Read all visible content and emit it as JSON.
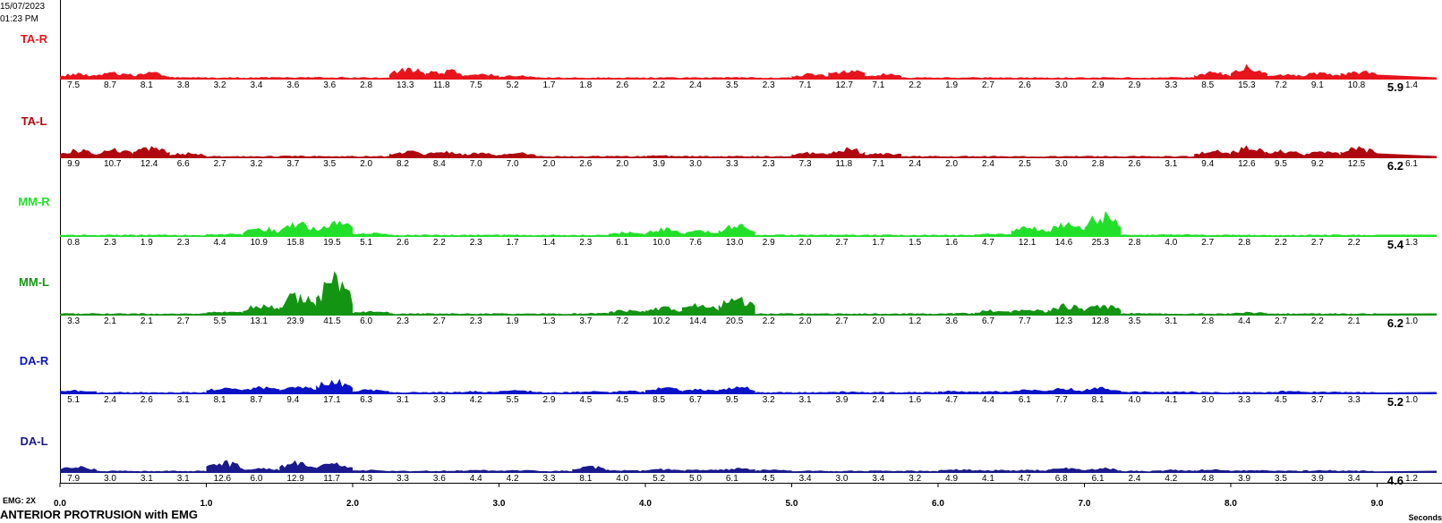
{
  "header": {
    "date": "15/07/2023",
    "time": "01:23 PM"
  },
  "footer": {
    "gain": "EMG: 2X",
    "title": "ANTERIOR PROTRUSION with EMG",
    "x_unit": "Seconds"
  },
  "chart_data": {
    "type": "area",
    "title": "ANTERIOR PROTRUSION with EMG",
    "xlabel": "Seconds",
    "xlim": [
      0,
      9.4
    ],
    "x_ticks": [
      "0.0",
      "1.0",
      "2.0",
      "3.0",
      "4.0",
      "5.0",
      "6.0",
      "7.0",
      "8.0",
      "9.0"
    ],
    "segment_width_s": 0.25,
    "series": [
      {
        "name": "TA-R",
        "color": "#e8141c",
        "rms": "5.9",
        "tail": "1.4",
        "segments": [
          "7.5",
          "8.7",
          "8.1",
          "3.8",
          "3.2",
          "3.4",
          "3.6",
          "3.6",
          "2.8",
          "13.3",
          "11.8",
          "7.5",
          "5.2",
          "1.7",
          "1.8",
          "2.6",
          "2.2",
          "2.4",
          "3.5",
          "2.3",
          "7.1",
          "12.7",
          "7.1",
          "2.2",
          "1.9",
          "2.7",
          "2.6",
          "3.0",
          "2.9",
          "2.9",
          "3.3",
          "8.5",
          "15.3",
          "7.2",
          "9.1",
          "10.8"
        ]
      },
      {
        "name": "TA-L",
        "color": "#b0080e",
        "rms": "6.2",
        "tail": "6.1",
        "segments": [
          "9.9",
          "10.7",
          "12.4",
          "6.6",
          "2.7",
          "3.2",
          "3.7",
          "3.5",
          "2.0",
          "8.2",
          "8.4",
          "7.0",
          "7.0",
          "2.0",
          "2.6",
          "2.0",
          "3.9",
          "3.0",
          "3.3",
          "2.3",
          "7.3",
          "11.8",
          "7.1",
          "2.4",
          "2.0",
          "2.4",
          "2.5",
          "3.0",
          "2.8",
          "2.6",
          "3.1",
          "9.4",
          "12.6",
          "9.5",
          "9.2",
          "12.5"
        ]
      },
      {
        "name": "MM-R",
        "color": "#22e02a",
        "rms": "5.4",
        "tail": "1.3",
        "segments": [
          "0.8",
          "2.3",
          "1.9",
          "2.3",
          "4.4",
          "10.9",
          "15.8",
          "19.5",
          "5.1",
          "2.6",
          "2.2",
          "2.3",
          "1.7",
          "1.4",
          "2.3",
          "6.1",
          "10.0",
          "7.6",
          "13.0",
          "2.9",
          "2.0",
          "2.7",
          "1.7",
          "1.5",
          "1.6",
          "4.7",
          "12.1",
          "14.6",
          "25.3",
          "2.8",
          "4.0",
          "2.7",
          "2.8",
          "2.2",
          "2.7",
          "2.2"
        ]
      },
      {
        "name": "MM-L",
        "color": "#139413",
        "rms": "6.2",
        "tail": "1.0",
        "segments": [
          "3.3",
          "2.1",
          "2.1",
          "2.7",
          "5.5",
          "13.1",
          "23.9",
          "41.5",
          "6.0",
          "2.3",
          "2.7",
          "2.3",
          "1.9",
          "1.3",
          "3.7",
          "7.2",
          "10.2",
          "14.4",
          "20.5",
          "2.2",
          "2.0",
          "2.7",
          "2.0",
          "1.2",
          "3.6",
          "6.7",
          "7.7",
          "12.3",
          "12.8",
          "3.5",
          "3.1",
          "2.8",
          "4.4",
          "2.7",
          "2.2",
          "2.1"
        ]
      },
      {
        "name": "DA-R",
        "color": "#0a12c8",
        "rms": "5.2",
        "tail": "1.0",
        "segments": [
          "5.1",
          "2.4",
          "2.6",
          "3.1",
          "8.1",
          "8.7",
          "9.4",
          "17.1",
          "6.3",
          "3.1",
          "3.3",
          "4.2",
          "5.5",
          "2.9",
          "4.5",
          "4.5",
          "8.5",
          "6.7",
          "9.5",
          "3.2",
          "3.1",
          "3.9",
          "2.4",
          "1.6",
          "4.7",
          "4.4",
          "6.1",
          "7.7",
          "8.1",
          "4.0",
          "4.1",
          "3.0",
          "3.3",
          "4.5",
          "3.7",
          "3.3"
        ]
      },
      {
        "name": "DA-L",
        "color": "#1a1a8c",
        "rms": "4.6",
        "tail": "1.2",
        "segments": [
          "7.9",
          "3.0",
          "3.1",
          "3.1",
          "12.6",
          "6.0",
          "12.9",
          "11.7",
          "4.3",
          "3.3",
          "3.6",
          "4.4",
          "4.2",
          "3.3",
          "8.1",
          "4.0",
          "5.2",
          "5.0",
          "6.1",
          "4.5",
          "3.4",
          "3.0",
          "3.4",
          "3.2",
          "4.9",
          "4.1",
          "4.7",
          "6.8",
          "6.1",
          "2.4",
          "4.2",
          "4.8",
          "3.9",
          "3.5",
          "3.9",
          "3.4"
        ]
      }
    ]
  }
}
